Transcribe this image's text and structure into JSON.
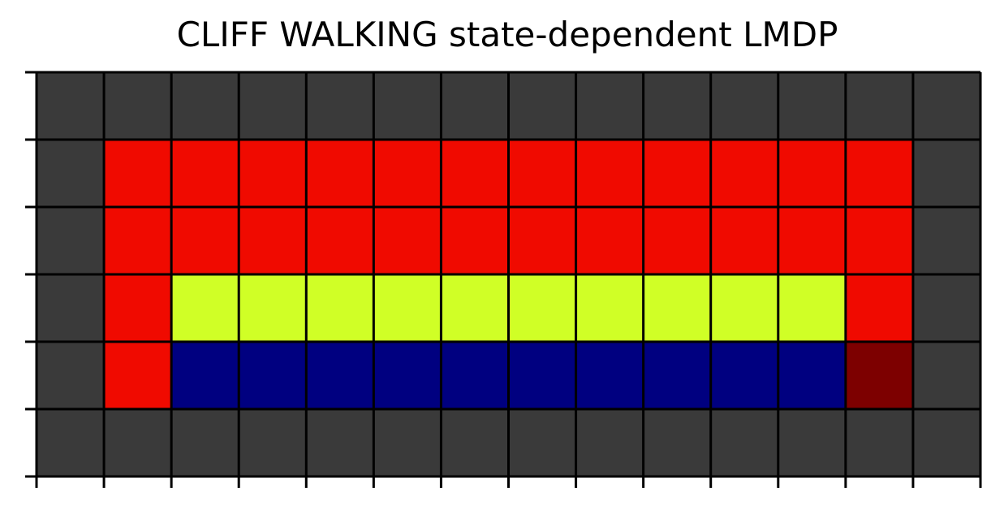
{
  "chart_data": {
    "type": "heatmap",
    "title": "CLIFF WALKING state-dependent LMDP",
    "rows": 6,
    "cols": 14,
    "colors": {
      "wall": "#3a3a3a",
      "normal": "#f00a00",
      "safe": "#d0ff26",
      "cliff": "#000080",
      "goal": "#7d0000",
      "grid_line": "#000000"
    },
    "cells": [
      [
        "wall",
        "wall",
        "wall",
        "wall",
        "wall",
        "wall",
        "wall",
        "wall",
        "wall",
        "wall",
        "wall",
        "wall",
        "wall",
        "wall"
      ],
      [
        "wall",
        "normal",
        "normal",
        "normal",
        "normal",
        "normal",
        "normal",
        "normal",
        "normal",
        "normal",
        "normal",
        "normal",
        "normal",
        "wall"
      ],
      [
        "wall",
        "normal",
        "normal",
        "normal",
        "normal",
        "normal",
        "normal",
        "normal",
        "normal",
        "normal",
        "normal",
        "normal",
        "normal",
        "wall"
      ],
      [
        "wall",
        "normal",
        "safe",
        "safe",
        "safe",
        "safe",
        "safe",
        "safe",
        "safe",
        "safe",
        "safe",
        "safe",
        "normal",
        "wall"
      ],
      [
        "wall",
        "normal",
        "cliff",
        "cliff",
        "cliff",
        "cliff",
        "cliff",
        "cliff",
        "cliff",
        "cliff",
        "cliff",
        "cliff",
        "goal",
        "wall"
      ],
      [
        "wall",
        "wall",
        "wall",
        "wall",
        "wall",
        "wall",
        "wall",
        "wall",
        "wall",
        "wall",
        "wall",
        "wall",
        "wall",
        "wall"
      ]
    ],
    "grid": true,
    "tick_labels": false
  }
}
